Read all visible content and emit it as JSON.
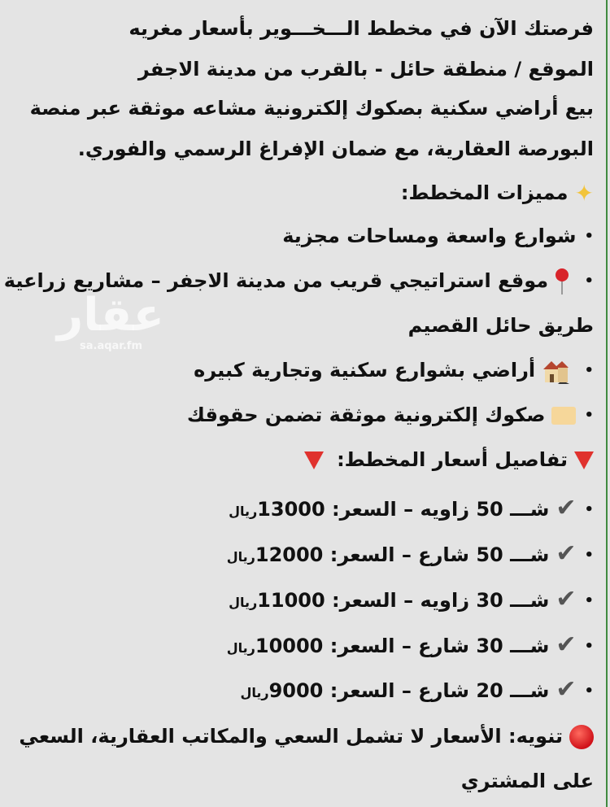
{
  "lines": {
    "l1": "فرصتك الآن في مخطط الـــخـــوير بأسعار مغريه",
    "l2": "الموقع / منطقة حائل - بالقرب من مدينة الاجفر",
    "l3": "بيع أراضي سكنية بصكوك إلكترونية مشاعه موثقة عبر منصة",
    "l4": "البورصة العقارية، مع ضمان الإفراغ الرسمي والفوري.",
    "features_title": "مميزات المخطط:",
    "f1": "شوارع واسعة ومساحات مجزية",
    "f2": "موقع استراتيجي قريب من مدينة الاجفر – مشاريع زراعية –",
    "f2b": "طريق حائل القصيم",
    "f3": "أراضي بشوارع سكنية وتجارية كبيره",
    "f4": "صكوك إلكترونية موثقة تضمن حقوقك",
    "prices_title": "تفاصيل أسعار المخطط:",
    "note": "تنويه: الأسعار لا تشمل السعي والمكاتب العقارية، السعي",
    "note2": "على المشتري"
  },
  "prices": [
    {
      "label": "شـــ 50 زاويه – السعر:",
      "value": "13000",
      "unit": "ريال"
    },
    {
      "label": "شـــ 50 شارع – السعر:",
      "value": "12000",
      "unit": "ريال"
    },
    {
      "label": "شـــ 30 زاويه – السعر:",
      "value": "11000",
      "unit": "ريال"
    },
    {
      "label": "شـــ 30 شارع – السعر:",
      "value": "10000",
      "unit": "ريال"
    },
    {
      "label": "شـــ 20 شارع – السعر:",
      "value": "9000",
      "unit": "ريال"
    }
  ],
  "watermark": {
    "logo": "عقار",
    "url": "sa.aqar.fm"
  },
  "icons": {
    "features": "sparkles-icon",
    "location": "pin-icon",
    "lands": "houses-icon",
    "deeds": "card-icon",
    "prices": "red-triangle-icon",
    "price_item": "check-icon",
    "note": "red-circle-icon"
  },
  "colors": {
    "background": "#e4e4e4",
    "edge": "#3f8a3f",
    "red": "#e0322e"
  }
}
